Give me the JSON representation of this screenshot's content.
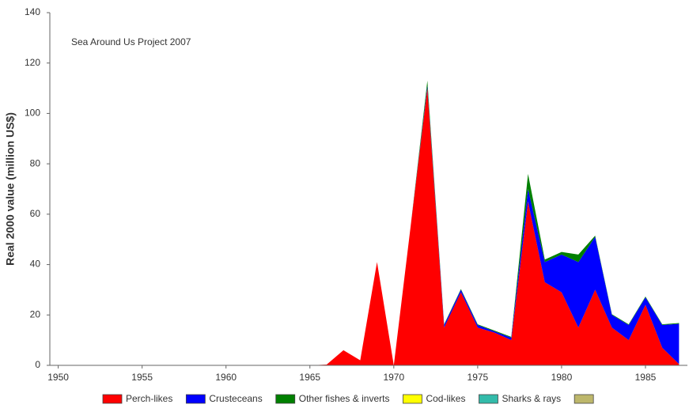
{
  "chart_data": {
    "type": "stacked-area",
    "annotation": "Sea Around Us Project 2007",
    "ylabel": "Real 2000 value (million US$)",
    "x": [
      1950,
      1951,
      1952,
      1953,
      1954,
      1955,
      1956,
      1957,
      1958,
      1959,
      1960,
      1961,
      1962,
      1963,
      1964,
      1965,
      1966,
      1967,
      1968,
      1969,
      1970,
      1971,
      1972,
      1973,
      1974,
      1975,
      1976,
      1977,
      1978,
      1979,
      1980,
      1981,
      1982,
      1983,
      1984,
      1985,
      1986,
      1987
    ],
    "series": [
      {
        "name": "Perch-likes",
        "color": "#ff0000",
        "values": [
          0,
          0,
          0,
          0,
          0,
          0,
          0,
          0,
          0,
          0,
          0,
          0,
          0,
          0,
          0,
          0,
          0.3,
          6,
          2,
          41,
          0,
          55,
          110,
          15,
          29,
          15,
          13,
          10,
          65,
          33,
          29,
          15,
          30,
          15,
          10,
          24,
          7,
          0.5
        ]
      },
      {
        "name": "Crusteceans",
        "color": "#0000ff",
        "values": [
          0,
          0,
          0,
          0,
          0,
          0,
          0,
          0,
          0,
          0,
          0,
          0,
          0,
          0,
          0,
          0,
          0,
          0,
          0,
          0,
          0,
          0,
          1,
          1,
          1,
          1,
          0.5,
          1,
          5,
          8,
          15,
          26,
          21,
          5,
          6,
          3,
          9,
          16
        ]
      },
      {
        "name": "Other fishes & inverts",
        "color": "#008000",
        "values": [
          0,
          0,
          0,
          0,
          0,
          0,
          0,
          0,
          0,
          0,
          0,
          0,
          0,
          0,
          0,
          0,
          0,
          0,
          0,
          0,
          0,
          0,
          2,
          0.3,
          0.3,
          0.3,
          0.3,
          0.3,
          6,
          1,
          1,
          3,
          0.5,
          0.3,
          0.3,
          0.3,
          0.3,
          0.3
        ]
      },
      {
        "name": "Cod-likes",
        "color": "#ffff00",
        "values": [
          0,
          0,
          0,
          0,
          0,
          0,
          0,
          0,
          0,
          0,
          0,
          0,
          0,
          0,
          0,
          0,
          0,
          0,
          0,
          0,
          0,
          0,
          0,
          0,
          0,
          0,
          0,
          0,
          0,
          0,
          0,
          0,
          0,
          0,
          0,
          0,
          0,
          0
        ]
      },
      {
        "name": "Sharks & rays",
        "color": "#33bbaa",
        "values": [
          0,
          0,
          0,
          0,
          0,
          0,
          0,
          0,
          0,
          0,
          0,
          0,
          0,
          0,
          0,
          0,
          0,
          0,
          0,
          0,
          0,
          0,
          0,
          0,
          0,
          0,
          0,
          0,
          0,
          0,
          0,
          0,
          0,
          0,
          0,
          0,
          0,
          0
        ]
      },
      {
        "name": null,
        "color": "#bdb76b",
        "values": [
          0,
          0,
          0,
          0,
          0,
          0,
          0,
          0,
          0,
          0,
          0,
          0,
          0,
          0,
          0,
          0,
          0,
          0,
          0,
          0,
          0,
          0,
          0,
          0,
          0,
          0,
          0,
          0,
          0,
          0,
          0,
          0,
          0,
          0,
          0,
          0,
          0,
          0
        ]
      }
    ],
    "xlim": [
      1949.5,
      1987.5
    ],
    "xticks": [
      1950,
      1955,
      1960,
      1965,
      1970,
      1975,
      1980,
      1985
    ],
    "ylim": [
      0,
      140
    ],
    "yticks": [
      0,
      20,
      40,
      60,
      80,
      100,
      120,
      140
    ]
  }
}
